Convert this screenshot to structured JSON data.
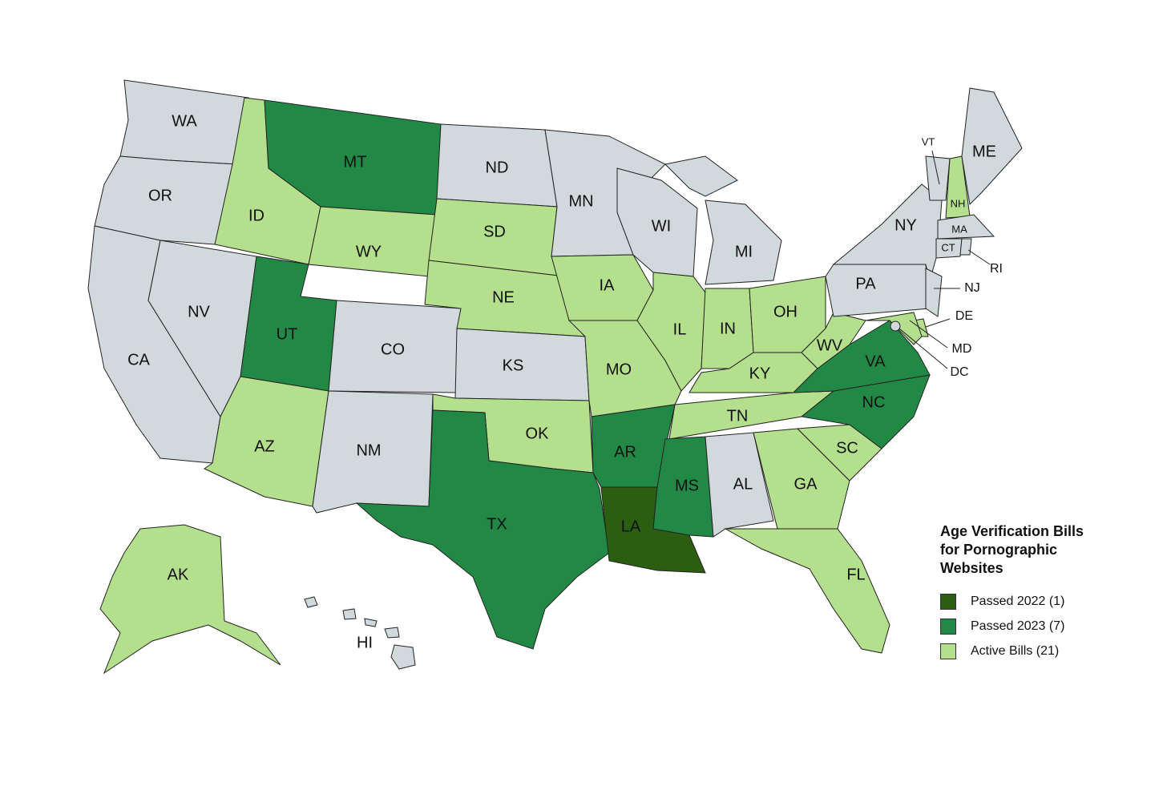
{
  "map": {
    "legend": {
      "title": "Age Verification Bills for Pornographic Websites",
      "items": [
        {
          "label": "Passed 2022 (1)",
          "color": "#2c5e12"
        },
        {
          "label": "Passed 2023 (7)",
          "color": "#228845"
        },
        {
          "label": "Active Bills (21)",
          "color": "#b4df8c"
        }
      ]
    },
    "states": [
      {
        "label": "WA",
        "color": "#d2d9dd"
      },
      {
        "label": "OR",
        "color": "#d2d9dd"
      },
      {
        "label": "CA",
        "color": "#d2d9dd"
      },
      {
        "label": "NV",
        "color": "#d2d9dd"
      },
      {
        "label": "ID",
        "color": "#b4df8c"
      },
      {
        "label": "MT",
        "color": "#228845"
      },
      {
        "label": "WY",
        "color": "#b4df8c"
      },
      {
        "label": "UT",
        "color": "#228845"
      },
      {
        "label": "AZ",
        "color": "#b4df8c"
      },
      {
        "label": "CO",
        "color": "#d2d9dd"
      },
      {
        "label": "NM",
        "color": "#d2d9dd"
      },
      {
        "label": "ND",
        "color": "#d2d9dd"
      },
      {
        "label": "SD",
        "color": "#b4df8c"
      },
      {
        "label": "NE",
        "color": "#b4df8c"
      },
      {
        "label": "KS",
        "color": "#d2d9dd"
      },
      {
        "label": "OK",
        "color": "#b4df8c"
      },
      {
        "label": "TX",
        "color": "#228845"
      },
      {
        "label": "MN",
        "color": "#d2d9dd"
      },
      {
        "label": "IA",
        "color": "#b4df8c"
      },
      {
        "label": "MO",
        "color": "#b4df8c"
      },
      {
        "label": "AR",
        "color": "#228845"
      },
      {
        "label": "LA",
        "color": "#2c5e12"
      },
      {
        "label": "WI",
        "color": "#d2d9dd"
      },
      {
        "label": "IL",
        "color": "#b4df8c"
      },
      {
        "label": "MI",
        "color": "#d2d9dd"
      },
      {
        "label": "IN",
        "color": "#b4df8c"
      },
      {
        "label": "OH",
        "color": "#b4df8c"
      },
      {
        "label": "KY",
        "color": "#b4df8c"
      },
      {
        "label": "TN",
        "color": "#b4df8c"
      },
      {
        "label": "MS",
        "color": "#228845"
      },
      {
        "label": "AL",
        "color": "#d2d9dd"
      },
      {
        "label": "GA",
        "color": "#b4df8c"
      },
      {
        "label": "FL",
        "color": "#b4df8c"
      },
      {
        "label": "SC",
        "color": "#b4df8c"
      },
      {
        "label": "NC",
        "color": "#228845"
      },
      {
        "label": "VA",
        "color": "#228845"
      },
      {
        "label": "WV",
        "color": "#b4df8c"
      },
      {
        "label": "PA",
        "color": "#d2d9dd"
      },
      {
        "label": "NY",
        "color": "#d2d9dd"
      },
      {
        "label": "VT",
        "color": "#d2d9dd"
      },
      {
        "label": "NH",
        "color": "#b4df8c"
      },
      {
        "label": "ME",
        "color": "#d2d9dd"
      },
      {
        "label": "MA",
        "color": "#d2d9dd"
      },
      {
        "label": "CT",
        "color": "#d2d9dd"
      },
      {
        "label": "RI",
        "color": "#d2d9dd"
      },
      {
        "label": "NJ",
        "color": "#d2d9dd"
      },
      {
        "label": "DE",
        "color": "#b4df8c"
      },
      {
        "label": "MD",
        "color": "#b4df8c"
      },
      {
        "label": "DC",
        "color": "#d2d9dd"
      },
      {
        "label": "AK",
        "color": "#b4df8c"
      },
      {
        "label": "HI",
        "color": "#d2d9dd"
      }
    ]
  }
}
